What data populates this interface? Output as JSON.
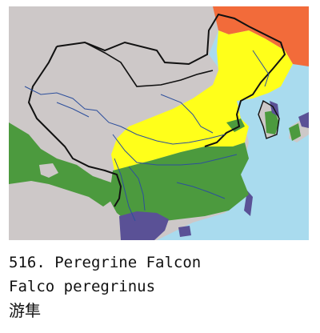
{
  "caption": {
    "number_and_common_name": "516. Peregrine Falcon",
    "scientific_name": "Falco peregrinus",
    "chinese_name": "游隼"
  },
  "legend_colors": {
    "sea": "#a9dbee",
    "land_outside": "#cdc8c8",
    "breeding_range": "#f26b3a",
    "resident_range": "#ffff1a",
    "winter_range": "#4c9a3e",
    "passage_range": "#5a5196",
    "border": "#111111",
    "river": "#2d4f9c"
  }
}
